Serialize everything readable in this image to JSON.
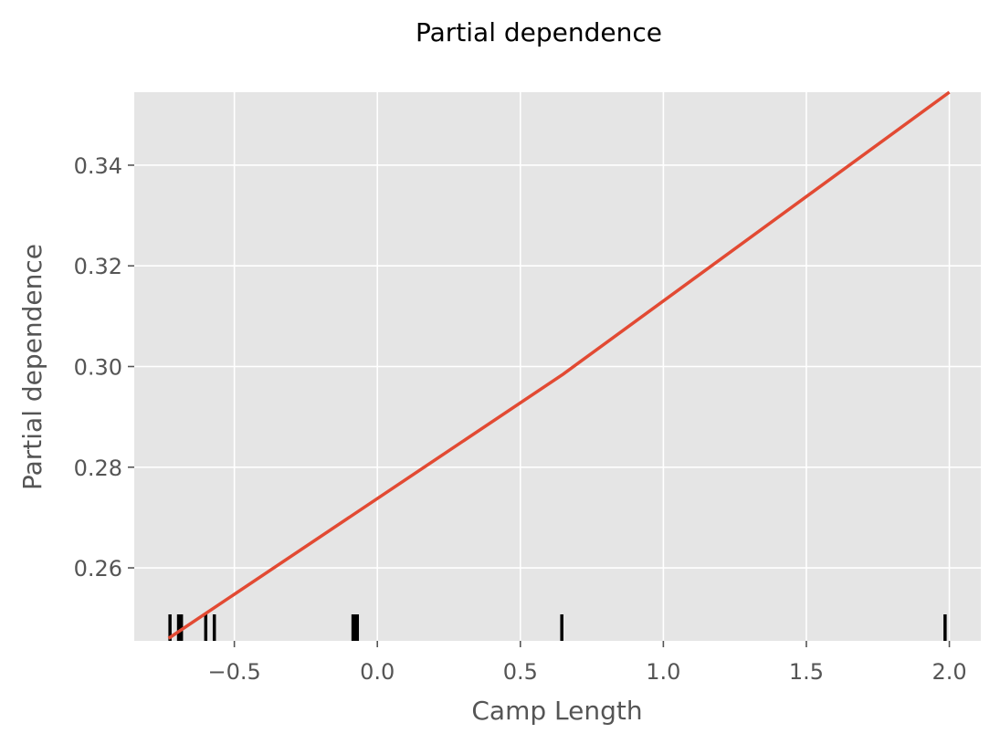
{
  "chart_data": {
    "type": "line",
    "title": "Partial dependence",
    "xlabel": "Camp Length",
    "ylabel": "Partial dependence",
    "xlim": [
      -0.85,
      2.11
    ],
    "ylim": [
      0.2455,
      0.3545
    ],
    "xticks": [
      -0.5,
      0.0,
      0.5,
      1.0,
      1.5,
      2.0
    ],
    "xtick_labels": [
      "−0.5",
      "0.0",
      "0.5",
      "1.0",
      "1.5",
      "2.0"
    ],
    "yticks": [
      0.26,
      0.28,
      0.3,
      0.32,
      0.34
    ],
    "ytick_labels": [
      "0.26",
      "0.28",
      "0.30",
      "0.32",
      "0.34"
    ],
    "grid": true,
    "series": [
      {
        "x": [
          -0.73,
          0.65,
          2.0
        ],
        "y": [
          0.246,
          0.2985,
          0.3545
        ]
      }
    ],
    "rug": {
      "x": [
        -0.725,
        -0.695,
        -0.685,
        -0.6,
        -0.57,
        -0.085,
        -0.075,
        -0.07,
        0.645,
        1.985
      ]
    },
    "colors": {
      "background": "#e5e5e5",
      "grid": "#ffffff",
      "line": "#e24a33",
      "rug": "#000000",
      "text": "#555555"
    }
  }
}
